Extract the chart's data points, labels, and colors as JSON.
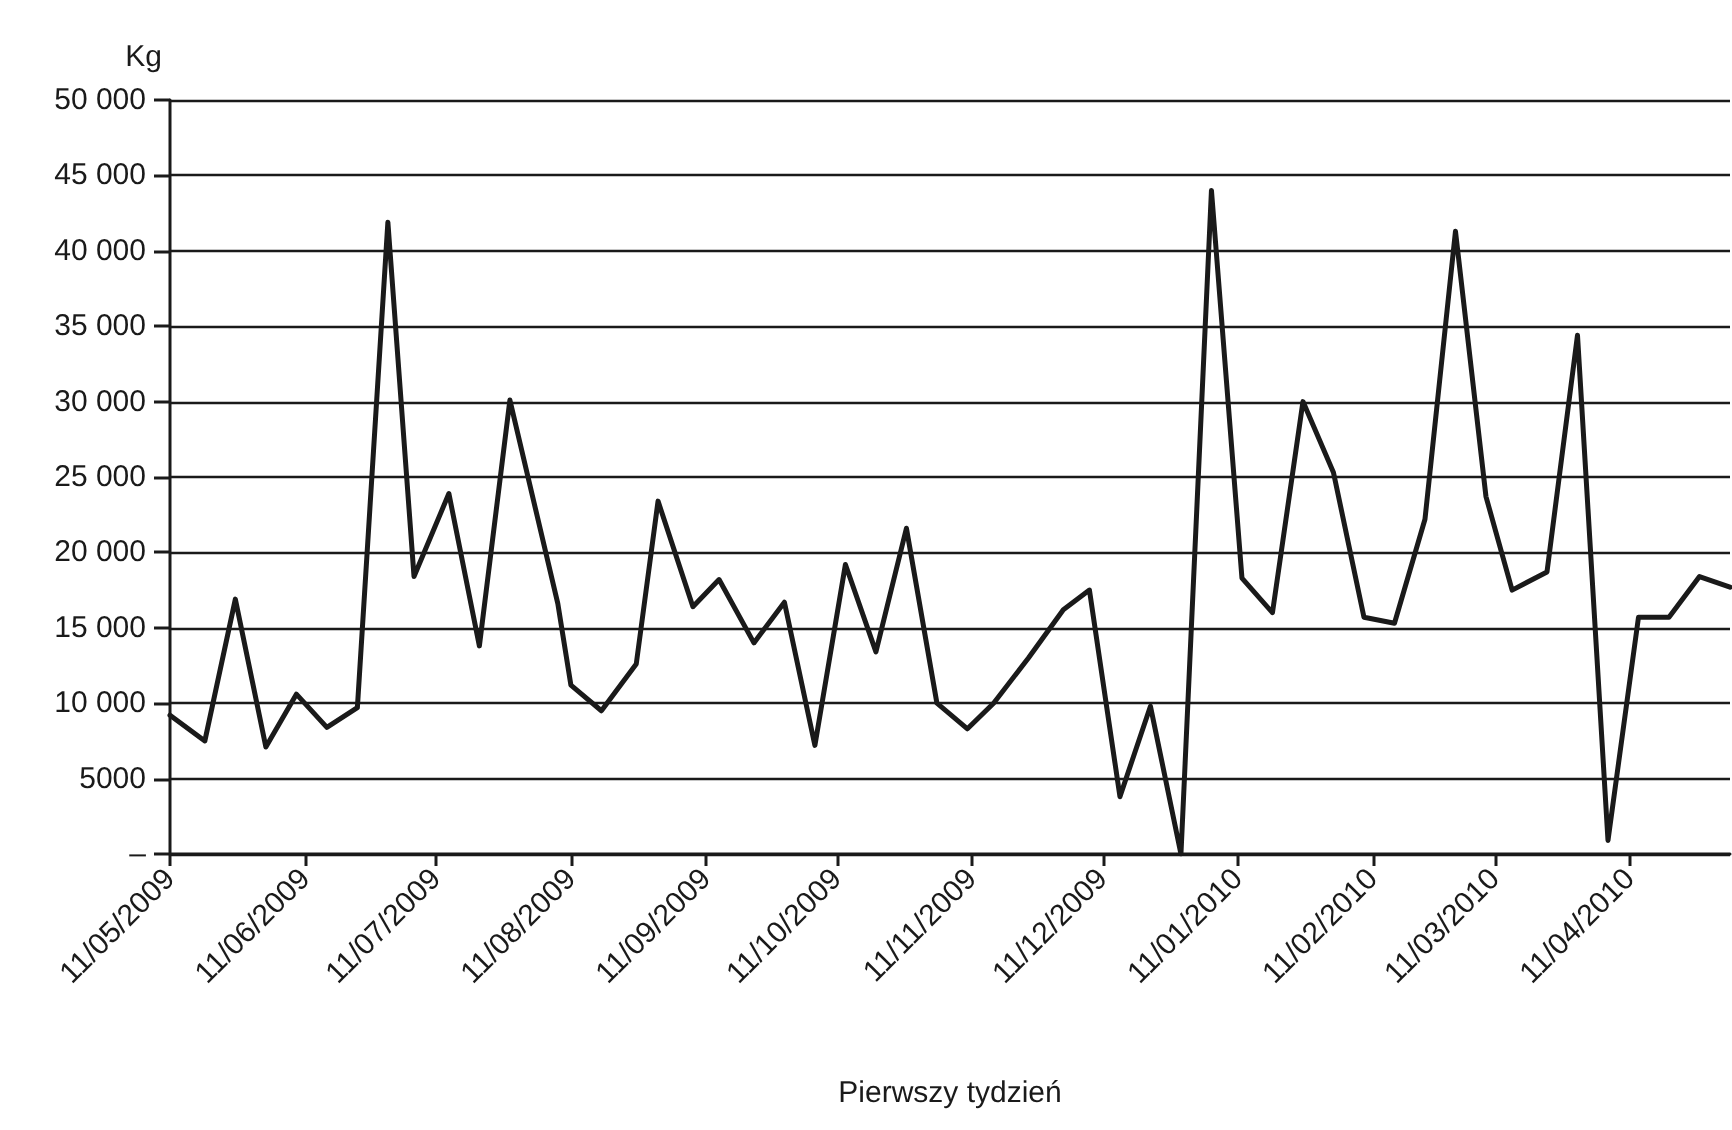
{
  "chart_data": {
    "type": "line",
    "xlabel": "Pierwszy tydzień",
    "ylabel": "Kg",
    "x": [
      "2009-05-11",
      "2009-05-19",
      "2009-05-26",
      "2009-06-02",
      "2009-06-09",
      "2009-06-16",
      "2009-06-23",
      "2009-06-30",
      "2009-07-06",
      "2009-07-14",
      "2009-07-21",
      "2009-07-28",
      "2009-08-08",
      "2009-08-11",
      "2009-08-18",
      "2009-08-26",
      "2009-08-31",
      "2009-09-08",
      "2009-09-14",
      "2009-09-22",
      "2009-09-29",
      "2009-10-06",
      "2009-10-13",
      "2009-10-20",
      "2009-10-27",
      "2009-11-03",
      "2009-11-10",
      "2009-11-16",
      "2009-11-24",
      "2009-12-02",
      "2009-12-08",
      "2009-12-15",
      "2009-12-22",
      "2009-12-29",
      "2010-01-05",
      "2010-01-12",
      "2010-01-19",
      "2010-01-26",
      "2010-02-02",
      "2010-02-09",
      "2010-02-16",
      "2010-02-23",
      "2010-03-02",
      "2010-03-09",
      "2010-03-15",
      "2010-03-23",
      "2010-03-30",
      "2010-04-06",
      "2010-04-13",
      "2010-04-20",
      "2010-04-27",
      "2010-05-04"
    ],
    "series": [
      {
        "color": "#1a1a1a",
        "values": [
          9200,
          7500,
          16900,
          7100,
          10600,
          8400,
          9700,
          41900,
          18400,
          23900,
          13800,
          30100,
          16600,
          11200,
          9500,
          12600,
          23400,
          16400,
          18200,
          14000,
          16700,
          7200,
          19200,
          13400,
          21600,
          10000,
          8300,
          10000,
          13000,
          16200,
          17500,
          3800,
          9800,
          0,
          44000,
          18300,
          16000,
          30000,
          25300,
          15700,
          15300,
          22200,
          41300,
          23700,
          17500,
          18700,
          34400,
          900,
          15700,
          15700,
          18400,
          17700
        ]
      }
    ],
    "xlim": [
      "2009-05-11",
      "2010-05-04"
    ],
    "xticks": [
      {
        "value": "2009-05-11",
        "label": "11/05/2009"
      },
      {
        "value": "2009-06-11",
        "label": "11/06/2009"
      },
      {
        "value": "2009-07-11",
        "label": "11/07/2009"
      },
      {
        "value": "2009-08-11",
        "label": "11/08/2009"
      },
      {
        "value": "2009-09-11",
        "label": "11/09/2009"
      },
      {
        "value": "2009-10-11",
        "label": "11/10/2009"
      },
      {
        "value": "2009-11-11",
        "label": "11/11/2009"
      },
      {
        "value": "2009-12-11",
        "label": "11/12/2009"
      },
      {
        "value": "2010-01-11",
        "label": "11/01/2010"
      },
      {
        "value": "2010-02-11",
        "label": "11/02/2010"
      },
      {
        "value": "2010-03-11",
        "label": "11/03/2010"
      },
      {
        "value": "2010-04-11",
        "label": "11/04/2010"
      }
    ],
    "ylim": [
      0,
      50000
    ],
    "yticks": [
      {
        "value": 0,
        "label": "–"
      },
      {
        "value": 5000,
        "label": "5000"
      },
      {
        "value": 10000,
        "label": "10 000"
      },
      {
        "value": 15000,
        "label": "15 000"
      },
      {
        "value": 20000,
        "label": "20 000"
      },
      {
        "value": 25000,
        "label": "25 000"
      },
      {
        "value": 30000,
        "label": "30 000"
      },
      {
        "value": 35000,
        "label": "35 000"
      },
      {
        "value": 40000,
        "label": "40 000"
      },
      {
        "value": 45000,
        "label": "45 000"
      },
      {
        "value": 50000,
        "label": "50 000"
      }
    ],
    "grid": "y",
    "marker": "none",
    "line_style": "solid"
  }
}
